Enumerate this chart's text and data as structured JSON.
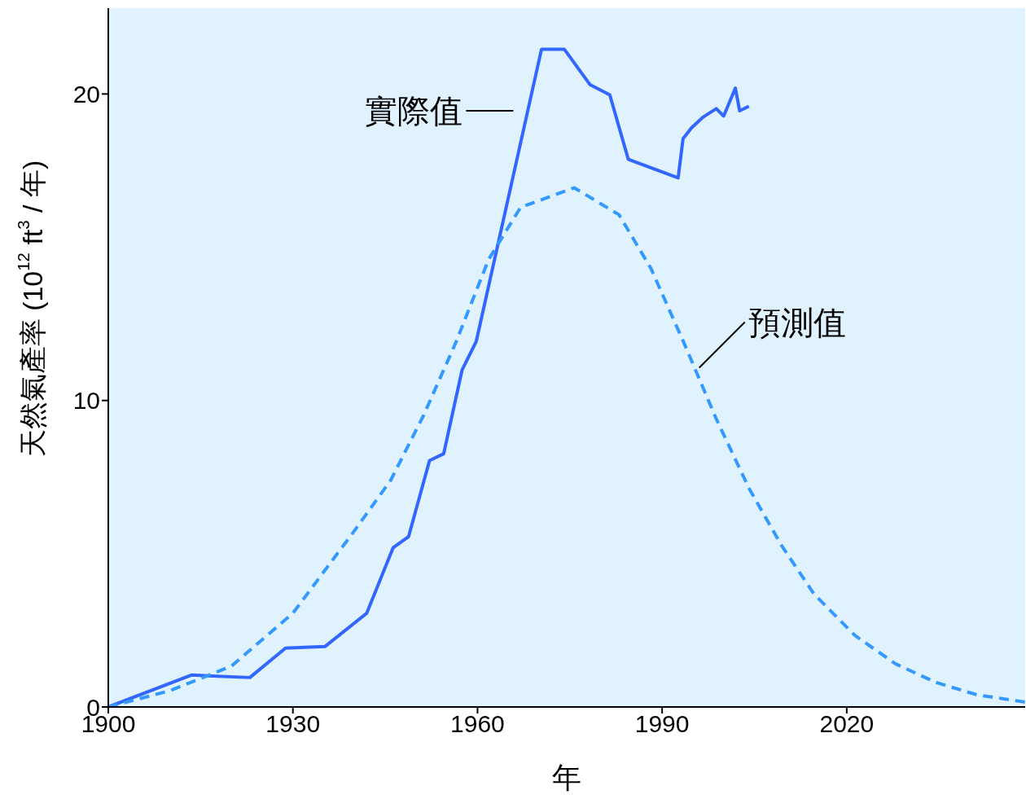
{
  "chart_data": {
    "type": "line",
    "xlabel": "年",
    "ylabel": "天然氣產率 (10$^{12}$ ft$^{3}$ / 年)",
    "xlim": [
      1900,
      2049
    ],
    "xticks": [
      1900,
      1930,
      1960,
      1990,
      2020
    ],
    "ylim": [
      0,
      22.8
    ],
    "yticks": [
      0,
      10,
      20
    ],
    "grid": false,
    "series": [
      {
        "color": "#3366ff",
        "line_style": "solid",
        "x": [
          1900,
          1913.5,
          1923,
          1928.8,
          1935.2,
          1942,
          1946.3,
          1948.8,
          1952.2,
          1954.5,
          1957.5,
          1959.8,
          1970.4,
          1974.1,
          1978.3,
          1981.5,
          1984.5,
          1992.6,
          1993.4,
          1994.8,
          1996.7,
          1998.8,
          2000,
          2001.9,
          2002.6,
          2004.1
        ],
        "values": [
          0,
          1.04,
          0.96,
          1.92,
          1.97,
          3.06,
          5.2,
          5.56,
          8.04,
          8.26,
          11.0,
          11.93,
          21.46,
          21.46,
          20.3,
          19.97,
          17.87,
          17.26,
          18.54,
          18.9,
          19.25,
          19.52,
          19.28,
          20.19,
          19.45,
          19.6
        ]
      },
      {
        "color": "#3399ff",
        "line_style": "dashed",
        "x": [
          1900,
          1910,
          1920,
          1930,
          1940,
          1945.9,
          1951.2,
          1956.5,
          1961.8,
          1967,
          1975.7,
          1983,
          1988.2,
          1993.5,
          1998.8,
          2004.1,
          2009.4,
          2014.7,
          2021.3,
          2027.9,
          2034.5,
          2041.1,
          2049
        ],
        "values": [
          0,
          0.53,
          1.33,
          3.06,
          5.75,
          7.4,
          9.5,
          11.9,
          14.6,
          16.3,
          16.94,
          16.06,
          14.3,
          11.9,
          9.4,
          7.14,
          5.27,
          3.68,
          2.34,
          1.41,
          0.8,
          0.4,
          0.16
        ]
      }
    ],
    "annotations": [
      {
        "text": "實際值",
        "x": 1968.2,
        "y": 19.45
      },
      {
        "text": "預測值",
        "x": 1995.5,
        "y": 10.96
      }
    ]
  }
}
